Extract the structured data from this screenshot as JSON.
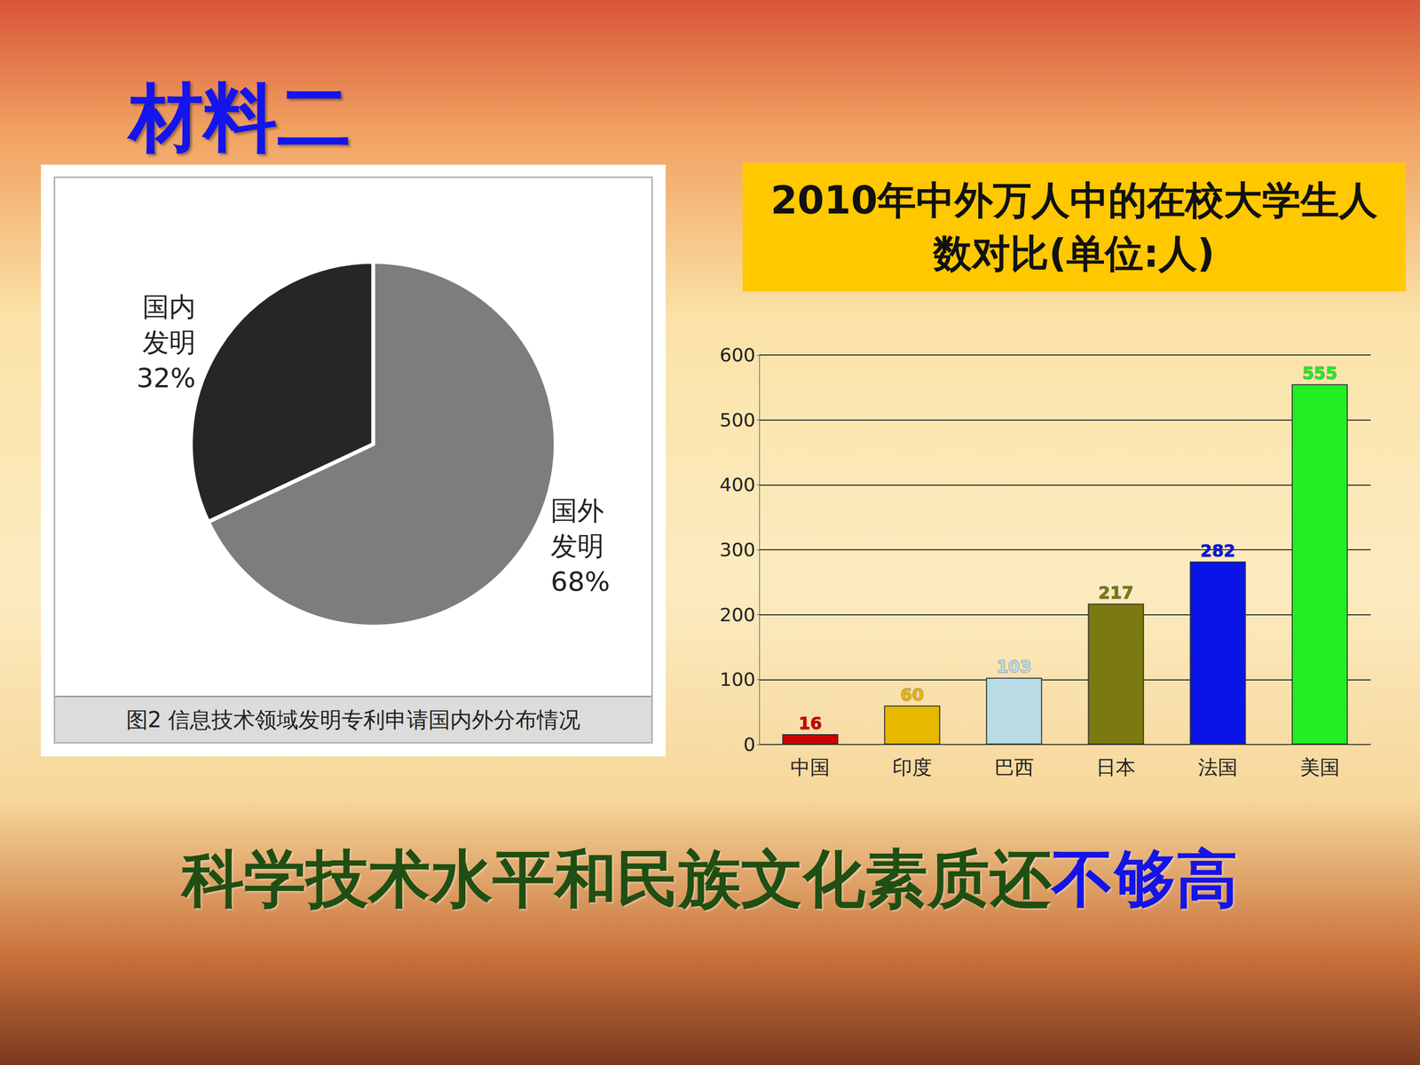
{
  "slide": {
    "heading": "材料二",
    "conclusion": [
      {
        "text": "科学技术水平和民族文化素质还",
        "color": "#1f4f12"
      },
      {
        "text": "不够高",
        "color": "#1414e6"
      }
    ]
  },
  "chart_data": [
    {
      "type": "pie",
      "title": "图2 信息技术领域发明专利申请国内外分布情况",
      "categories": [
        "国内发明",
        "国外发明"
      ],
      "values": [
        32,
        68
      ],
      "value_labels": [
        "32%",
        "68%"
      ],
      "colors": [
        "#262626",
        "#7d7d7d"
      ],
      "data_labels": true
    },
    {
      "type": "bar",
      "title": "2010年中外万人中的在校大学生人数对比(单位:人)",
      "categories": [
        "中国",
        "印度",
        "巴西",
        "日本",
        "法国",
        "美国"
      ],
      "values": [
        16,
        60,
        103,
        217,
        282,
        555
      ],
      "colors": [
        "#cc0000",
        "#e6b800",
        "#b8dbe6",
        "#7a7a10",
        "#0a14e6",
        "#22ee22"
      ],
      "ylim": [
        0,
        600
      ],
      "yticks": [
        0,
        100,
        200,
        300,
        400,
        500,
        600
      ],
      "grid": true,
      "data_labels": true
    }
  ]
}
